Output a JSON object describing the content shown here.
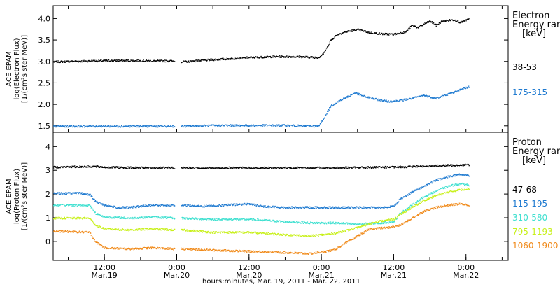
{
  "chart_data": {
    "xlabel": "hours:minutes, Mar. 19, 2011 - Mar. 22, 2011",
    "x_tick_labels": [
      {
        "time": "12:00",
        "date": "Mar.19",
        "hour": 12
      },
      {
        "time": "0:00",
        "date": "Mar.20",
        "hour": 24
      },
      {
        "time": "12:00",
        "date": "Mar.20",
        "hour": 36
      },
      {
        "time": "0:00",
        "date": "Mar.21",
        "hour": 48
      },
      {
        "time": "12:00",
        "date": "Mar.21",
        "hour": 60
      },
      {
        "time": "0:00",
        "date": "Mar.22",
        "hour": 72
      }
    ],
    "xlim_hours": [
      3.5,
      79
    ],
    "panels": [
      {
        "type": "scatter",
        "ylabel_lines": [
          "ACE EPAM",
          "log(Electron Flux)",
          "[1/(cm²s ster MeV)]"
        ],
        "ylim": [
          1.35,
          4.3
        ],
        "y_ticks": [
          "1.5",
          "2.0",
          "2.5",
          "3.0",
          "3.5",
          "4.0"
        ],
        "legend_title": [
          "Electron",
          "Energy ranges",
          "[keV]"
        ],
        "series": [
          {
            "name": "38-53",
            "color": "#000000",
            "points": [
              [
                3.5,
                3.0
              ],
              [
                10,
                3.02
              ],
              [
                14,
                3.03
              ],
              [
                20,
                3.02
              ],
              [
                23.5,
                3.02
              ],
              [
                25,
                3.0
              ],
              [
                30,
                3.05
              ],
              [
                36,
                3.1
              ],
              [
                40,
                3.12
              ],
              [
                44,
                3.12
              ],
              [
                47.5,
                3.1
              ],
              [
                48.5,
                3.22
              ],
              [
                49.5,
                3.5
              ],
              [
                50.5,
                3.63
              ],
              [
                52,
                3.7
              ],
              [
                54,
                3.75
              ],
              [
                56,
                3.68
              ],
              [
                58,
                3.65
              ],
              [
                60,
                3.64
              ],
              [
                62,
                3.7
              ],
              [
                63,
                3.85
              ],
              [
                64,
                3.8
              ],
              [
                65,
                3.88
              ],
              [
                66,
                3.95
              ],
              [
                67,
                3.85
              ],
              [
                68,
                3.95
              ],
              [
                70,
                3.98
              ],
              [
                71,
                3.92
              ],
              [
                72.5,
                4.0
              ]
            ],
            "gaps": [
              [
                23.6,
                24.7
              ]
            ]
          },
          {
            "name": "175-315",
            "color": "#1f7ad0",
            "points": [
              [
                3.5,
                1.5
              ],
              [
                10,
                1.5
              ],
              [
                16,
                1.5
              ],
              [
                23.5,
                1.5
              ],
              [
                25,
                1.5
              ],
              [
                30,
                1.52
              ],
              [
                36,
                1.52
              ],
              [
                42,
                1.52
              ],
              [
                47.5,
                1.5
              ],
              [
                48.5,
                1.72
              ],
              [
                49.5,
                1.97
              ],
              [
                51,
                2.1
              ],
              [
                52.5,
                2.2
              ],
              [
                53.5,
                2.28
              ],
              [
                55,
                2.2
              ],
              [
                57,
                2.13
              ],
              [
                59,
                2.08
              ],
              [
                61,
                2.1
              ],
              [
                63,
                2.15
              ],
              [
                65,
                2.22
              ],
              [
                67,
                2.15
              ],
              [
                69,
                2.25
              ],
              [
                70.5,
                2.32
              ],
              [
                71.5,
                2.38
              ],
              [
                72.5,
                2.42
              ]
            ],
            "gaps": [
              [
                23.6,
                24.7
              ]
            ]
          }
        ]
      },
      {
        "type": "scatter",
        "ylabel_lines": [
          "ACE EPAM",
          "log(Proton Flux)",
          "[1/(cm²s ster MeV)]"
        ],
        "ylim": [
          -0.8,
          4.6
        ],
        "y_ticks": [
          "0",
          "1",
          "2",
          "3",
          "4"
        ],
        "legend_title": [
          "Proton",
          "Energy ranges",
          "[keV]"
        ],
        "series": [
          {
            "name": "47-68",
            "color": "#000000",
            "points": [
              [
                3.5,
                3.15
              ],
              [
                10,
                3.18
              ],
              [
                12,
                3.15
              ],
              [
                16,
                3.13
              ],
              [
                20,
                3.12
              ],
              [
                23.5,
                3.12
              ],
              [
                25,
                3.12
              ],
              [
                36,
                3.12
              ],
              [
                48,
                3.12
              ],
              [
                60,
                3.15
              ],
              [
                72,
                3.25
              ],
              [
                72.5,
                3.25
              ]
            ],
            "gaps": [
              [
                23.6,
                24.7
              ]
            ]
          },
          {
            "name": "115-195",
            "color": "#1f7ad0",
            "points": [
              [
                3.5,
                2.05
              ],
              [
                8,
                2.05
              ],
              [
                9.5,
                2.0
              ],
              [
                10.5,
                1.7
              ],
              [
                12,
                1.55
              ],
              [
                14,
                1.45
              ],
              [
                16,
                1.45
              ],
              [
                18,
                1.5
              ],
              [
                20,
                1.55
              ],
              [
                23.5,
                1.55
              ],
              [
                25,
                1.55
              ],
              [
                28,
                1.5
              ],
              [
                32,
                1.55
              ],
              [
                36,
                1.6
              ],
              [
                38,
                1.5
              ],
              [
                42,
                1.45
              ],
              [
                46,
                1.45
              ],
              [
                50,
                1.45
              ],
              [
                54,
                1.45
              ],
              [
                58,
                1.45
              ],
              [
                60,
                1.5
              ],
              [
                61,
                1.8
              ],
              [
                63,
                2.1
              ],
              [
                65,
                2.35
              ],
              [
                67,
                2.6
              ],
              [
                69,
                2.75
              ],
              [
                71,
                2.85
              ],
              [
                72.5,
                2.8
              ]
            ],
            "gaps": [
              [
                23.6,
                24.7
              ]
            ]
          },
          {
            "name": "310-580",
            "color": "#3fe0d0",
            "points": [
              [
                3.5,
                1.55
              ],
              [
                9.5,
                1.55
              ],
              [
                10.5,
                1.2
              ],
              [
                12,
                1.05
              ],
              [
                16,
                1.0
              ],
              [
                20,
                1.05
              ],
              [
                23.5,
                1.0
              ],
              [
                25,
                1.0
              ],
              [
                30,
                0.95
              ],
              [
                36,
                0.95
              ],
              [
                42,
                0.85
              ],
              [
                46,
                0.8
              ],
              [
                50,
                0.8
              ],
              [
                54,
                0.75
              ],
              [
                58,
                0.8
              ],
              [
                60,
                0.85
              ],
              [
                61,
                1.2
              ],
              [
                63,
                1.55
              ],
              [
                65,
                1.9
              ],
              [
                67,
                2.15
              ],
              [
                69,
                2.35
              ],
              [
                71,
                2.45
              ],
              [
                72.5,
                2.4
              ]
            ],
            "gaps": [
              [
                23.6,
                24.7
              ]
            ]
          },
          {
            "name": "795-1193",
            "color": "#c8f01a",
            "points": [
              [
                3.5,
                1.0
              ],
              [
                9.5,
                1.0
              ],
              [
                10.5,
                0.7
              ],
              [
                12,
                0.55
              ],
              [
                16,
                0.5
              ],
              [
                20,
                0.55
              ],
              [
                23.5,
                0.5
              ],
              [
                25,
                0.5
              ],
              [
                30,
                0.4
              ],
              [
                36,
                0.4
              ],
              [
                42,
                0.3
              ],
              [
                46,
                0.25
              ],
              [
                50,
                0.35
              ],
              [
                54,
                0.6
              ],
              [
                57,
                0.85
              ],
              [
                60,
                0.95
              ],
              [
                61,
                1.15
              ],
              [
                63,
                1.45
              ],
              [
                65,
                1.75
              ],
              [
                67,
                1.95
              ],
              [
                69,
                2.1
              ],
              [
                71,
                2.2
              ],
              [
                72.5,
                2.25
              ]
            ],
            "gaps": [
              [
                23.6,
                24.7
              ]
            ]
          },
          {
            "name": "1060-1900",
            "color": "#f08a1a",
            "points": [
              [
                3.5,
                0.45
              ],
              [
                9.5,
                0.4
              ],
              [
                10.5,
                0.0
              ],
              [
                12,
                -0.25
              ],
              [
                16,
                -0.3
              ],
              [
                20,
                -0.25
              ],
              [
                23.5,
                -0.3
              ],
              [
                25,
                -0.3
              ],
              [
                30,
                -0.35
              ],
              [
                36,
                -0.4
              ],
              [
                42,
                -0.45
              ],
              [
                46,
                -0.5
              ],
              [
                50,
                -0.35
              ],
              [
                53,
                0.1
              ],
              [
                56,
                0.55
              ],
              [
                59,
                0.6
              ],
              [
                61,
                0.7
              ],
              [
                63,
                1.0
              ],
              [
                65,
                1.3
              ],
              [
                67,
                1.45
              ],
              [
                69,
                1.55
              ],
              [
                71,
                1.6
              ],
              [
                72.5,
                1.55
              ]
            ],
            "gaps": [
              [
                23.6,
                24.7
              ]
            ]
          }
        ]
      }
    ]
  }
}
